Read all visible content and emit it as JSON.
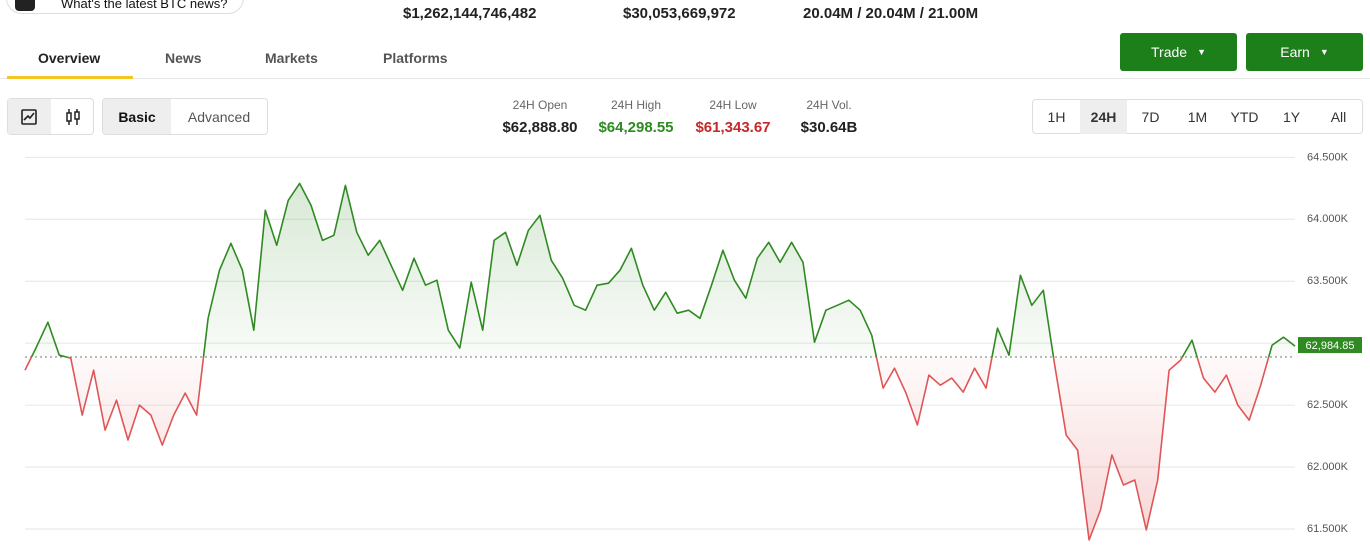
{
  "header": {
    "news_button": "What's the latest BTC news?",
    "stats": [
      "$1,262,144,746,482",
      "$30,053,669,972",
      "20.04M / 20.04M / 21.00M"
    ]
  },
  "tabs": [
    "Overview",
    "News",
    "Markets",
    "Platforms"
  ],
  "actions": [
    "Trade",
    "Earn"
  ],
  "view_modes": [
    "Basic",
    "Advanced"
  ],
  "day_stats": [
    {
      "label": "24H Open",
      "value": "$62,888.80"
    },
    {
      "label": "24H High",
      "value": "$64,298.55"
    },
    {
      "label": "24H Low",
      "value": "$61,343.67"
    },
    {
      "label": "24H Vol.",
      "value": "$30.64B"
    }
  ],
  "timeframes": [
    "1H",
    "24H",
    "7D",
    "1M",
    "YTD",
    "1Y",
    "All"
  ],
  "selected_timeframe": "24H",
  "chart_data": {
    "type": "line",
    "up_color": "#2f8a22",
    "down_color": "#e05555",
    "baseline": 62888.8,
    "last_price": {
      "value": 62984.85,
      "label": "62,984.85"
    },
    "ylim": [
      61330,
      64600
    ],
    "yticks": [
      {
        "value": 61500,
        "label": "61.500K"
      },
      {
        "value": 62000,
        "label": "62.000K"
      },
      {
        "value": 62500,
        "label": "62.500K"
      },
      {
        "value": 63000,
        "label": "63.000K"
      },
      {
        "value": 63500,
        "label": "63.500K"
      },
      {
        "value": 64000,
        "label": "64.000K"
      },
      {
        "value": 64500,
        "label": "64.500K"
      }
    ],
    "grid": true,
    "values": [
      62782,
      62968,
      63169,
      62903,
      62879,
      62419,
      62782,
      62298,
      62540,
      62218,
      62500,
      62419,
      62177,
      62419,
      62597,
      62419,
      63201,
      63589,
      63806,
      63589,
      63105,
      64073,
      63790,
      64153,
      64290,
      64113,
      63830,
      63871,
      64274,
      63895,
      63710,
      63830,
      63629,
      63427,
      63685,
      63468,
      63508,
      63105,
      62960,
      63492,
      63105,
      63830,
      63895,
      63629,
      63911,
      64032,
      63669,
      63524,
      63306,
      63266,
      63468,
      63484,
      63589,
      63766,
      63468,
      63266,
      63411,
      63242,
      63266,
      63201,
      63468,
      63750,
      63508,
      63363,
      63685,
      63814,
      63653,
      63814,
      63653,
      63008,
      63266,
      63306,
      63347,
      63266,
      63064,
      62637,
      62798,
      62597,
      62339,
      62742,
      62661,
      62718,
      62605,
      62798,
      62637,
      63121,
      62903,
      63548,
      63306,
      63427,
      62823,
      62258,
      62137,
      61411,
      61653,
      62097,
      61855,
      61895,
      61492,
      61895,
      62782,
      62863,
      63024,
      62718,
      62605,
      62742,
      62500,
      62379,
      62661,
      62984,
      63048,
      62976
    ]
  }
}
